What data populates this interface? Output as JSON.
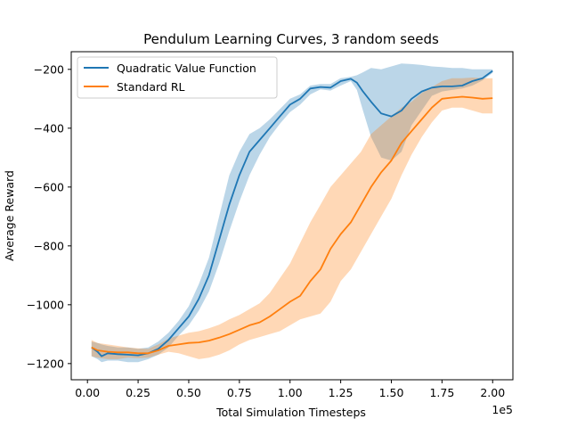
{
  "chart_data": {
    "type": "line",
    "title": "Pendulum Learning Curves, 3 random seeds",
    "xlabel": "Total Simulation Timesteps",
    "ylabel": "Average Reward",
    "x_offset_label": "1e5",
    "xlim": [
      -0.08,
      2.1
    ],
    "ylim": [
      -1255,
      -140
    ],
    "xticks": [
      0.0,
      0.25,
      0.5,
      0.75,
      1.0,
      1.25,
      1.5,
      1.75,
      2.0
    ],
    "xtick_labels": [
      "0.00",
      "0.25",
      "0.50",
      "0.75",
      "1.00",
      "1.25",
      "1.50",
      "1.75",
      "2.00"
    ],
    "yticks": [
      -1200,
      -1000,
      -800,
      -600,
      -400,
      -200
    ],
    "ytick_labels": [
      "−1200",
      "−1000",
      "−800",
      "−600",
      "−400",
      "−200"
    ],
    "grid": false,
    "legend_position": "top-left",
    "colors": {
      "quadratic": "#1f77b4",
      "standard": "#ff7f0e"
    },
    "series": [
      {
        "name": "Quadratic Value Function",
        "color": "#1f77b4",
        "x": [
          0.02,
          0.05,
          0.07,
          0.1,
          0.15,
          0.2,
          0.25,
          0.3,
          0.35,
          0.4,
          0.45,
          0.5,
          0.55,
          0.6,
          0.65,
          0.7,
          0.75,
          0.8,
          0.85,
          0.9,
          0.95,
          1.0,
          1.05,
          1.1,
          1.15,
          1.2,
          1.25,
          1.3,
          1.33,
          1.36,
          1.4,
          1.45,
          1.5,
          1.55,
          1.6,
          1.65,
          1.7,
          1.75,
          1.8,
          1.85,
          1.9,
          1.95,
          2.0
        ],
        "y": [
          -1145,
          -1160,
          -1175,
          -1165,
          -1168,
          -1170,
          -1172,
          -1165,
          -1150,
          -1120,
          -1080,
          -1040,
          -980,
          -900,
          -780,
          -660,
          -560,
          -480,
          -440,
          -400,
          -360,
          -320,
          -300,
          -265,
          -260,
          -262,
          -240,
          -232,
          -245,
          -275,
          -310,
          -350,
          -360,
          -340,
          -300,
          -275,
          -262,
          -258,
          -258,
          -255,
          -240,
          -230,
          -205
        ],
        "upper": [
          -1125,
          -1130,
          -1135,
          -1140,
          -1145,
          -1145,
          -1150,
          -1145,
          -1125,
          -1095,
          -1055,
          -1005,
          -930,
          -840,
          -700,
          -560,
          -480,
          -420,
          -400,
          -370,
          -335,
          -300,
          -285,
          -255,
          -250,
          -250,
          -230,
          -225,
          -220,
          -210,
          -195,
          -200,
          -190,
          -180,
          -182,
          -185,
          -190,
          -192,
          -195,
          -195,
          -200,
          -200,
          -200
        ],
        "lower": [
          -1175,
          -1185,
          -1195,
          -1190,
          -1190,
          -1195,
          -1195,
          -1185,
          -1170,
          -1145,
          -1105,
          -1070,
          -1020,
          -955,
          -860,
          -750,
          -650,
          -560,
          -490,
          -430,
          -385,
          -345,
          -320,
          -285,
          -268,
          -272,
          -255,
          -240,
          -270,
          -340,
          -430,
          -500,
          -510,
          -480,
          -390,
          -340,
          -290,
          -275,
          -270,
          -265,
          -255,
          -238,
          -212
        ]
      },
      {
        "name": "Standard RL",
        "color": "#ff7f0e",
        "x": [
          0.02,
          0.05,
          0.1,
          0.15,
          0.2,
          0.25,
          0.3,
          0.35,
          0.4,
          0.45,
          0.5,
          0.55,
          0.6,
          0.65,
          0.7,
          0.75,
          0.8,
          0.85,
          0.9,
          0.95,
          1.0,
          1.05,
          1.1,
          1.15,
          1.2,
          1.25,
          1.3,
          1.35,
          1.4,
          1.45,
          1.5,
          1.55,
          1.6,
          1.65,
          1.7,
          1.75,
          1.8,
          1.85,
          1.9,
          1.95,
          2.0
        ],
        "y": [
          -1145,
          -1155,
          -1160,
          -1162,
          -1162,
          -1165,
          -1165,
          -1155,
          -1140,
          -1135,
          -1130,
          -1128,
          -1122,
          -1112,
          -1100,
          -1085,
          -1070,
          -1060,
          -1040,
          -1015,
          -990,
          -970,
          -920,
          -880,
          -810,
          -760,
          -720,
          -660,
          -600,
          -550,
          -510,
          -450,
          -410,
          -370,
          -330,
          -300,
          -296,
          -293,
          -296,
          -300,
          -298
        ],
        "upper": [
          -1120,
          -1130,
          -1135,
          -1140,
          -1145,
          -1148,
          -1150,
          -1135,
          -1115,
          -1105,
          -1095,
          -1090,
          -1080,
          -1068,
          -1050,
          -1035,
          -1015,
          -995,
          -960,
          -910,
          -860,
          -790,
          -720,
          -660,
          -600,
          -560,
          -520,
          -480,
          -420,
          -390,
          -360,
          -330,
          -310,
          -280,
          -260,
          -240,
          -230,
          -230,
          -228,
          -230,
          -230
        ],
        "lower": [
          -1175,
          -1180,
          -1185,
          -1185,
          -1180,
          -1182,
          -1180,
          -1170,
          -1160,
          -1165,
          -1175,
          -1185,
          -1180,
          -1170,
          -1155,
          -1135,
          -1120,
          -1110,
          -1100,
          -1090,
          -1070,
          -1050,
          -1040,
          -1030,
          -990,
          -920,
          -880,
          -820,
          -760,
          -700,
          -640,
          -560,
          -490,
          -430,
          -380,
          -340,
          -330,
          -330,
          -340,
          -350,
          -350
        ]
      }
    ]
  }
}
